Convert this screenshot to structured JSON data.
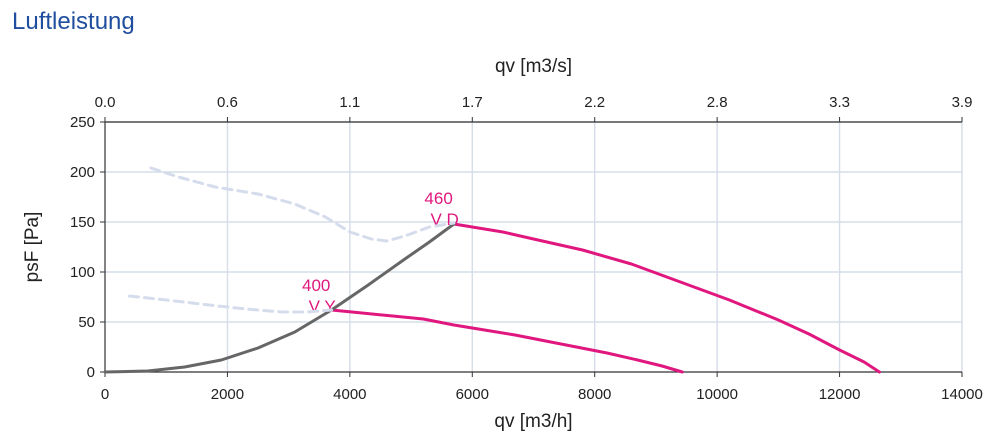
{
  "page": {
    "title": "Luftleistung"
  },
  "chart_data": {
    "type": "line",
    "title": "",
    "xlabel": "qv [m3/h]",
    "ylabel": "psF [Pa]",
    "x2label": "qv [m3/s]",
    "xlim": [
      0,
      14000
    ],
    "ylim": [
      0,
      250
    ],
    "grid": true,
    "x_ticks": [
      "0",
      "2000",
      "4000",
      "6000",
      "8000",
      "10000",
      "12000",
      "14000"
    ],
    "y_ticks": [
      "0",
      "50",
      "100",
      "150",
      "200",
      "250"
    ],
    "x2_ticks": [
      "0.0",
      "0.6",
      "1.1",
      "1.7",
      "2.2",
      "2.8",
      "3.3",
      "3.9"
    ],
    "colors": {
      "curve": "#e0177e",
      "system": "#666666",
      "dashed": "#d5dcec",
      "grid": "#d6dde8",
      "title": "#1f4e9e"
    },
    "series": [
      {
        "style": "curve",
        "label_line1": "460",
        "label_line2": "V D",
        "label_at": [
          5450,
          168
        ],
        "x": [
          5700,
          6500,
          7000,
          7800,
          8600,
          9400,
          10200,
          11000,
          11500,
          12000,
          12400,
          12650
        ],
        "y": [
          148,
          140,
          133,
          122,
          108,
          90,
          72,
          52,
          38,
          22,
          10,
          0
        ]
      },
      {
        "style": "curve",
        "label_line1": "400",
        "label_line2": "V Y",
        "label_at": [
          3450,
          81
        ],
        "x": [
          3700,
          4200,
          4700,
          5200,
          5700,
          6200,
          6700,
          7200,
          7700,
          8200,
          8700,
          9100,
          9430
        ],
        "y": [
          62,
          59,
          56,
          53,
          47,
          42,
          37,
          31,
          25,
          19,
          12,
          6,
          0
        ]
      },
      {
        "style": "system",
        "x": [
          0,
          700,
          1300,
          1900,
          2500,
          3100,
          3700,
          4300,
          4900,
          5300,
          5700
        ],
        "y": [
          0,
          1,
          5,
          12,
          24,
          40,
          62,
          87,
          113,
          130,
          148
        ]
      },
      {
        "style": "dashed",
        "x": [
          750,
          1200,
          1800,
          2500,
          3100,
          3600,
          4000,
          4350,
          4600,
          4900,
          5300,
          5700
        ],
        "y": [
          204,
          195,
          185,
          178,
          168,
          155,
          140,
          133,
          131,
          136,
          145,
          149
        ]
      },
      {
        "style": "dashed",
        "x": [
          400,
          1000,
          1700,
          2300,
          2900,
          3300,
          3700
        ],
        "y": [
          76,
          72,
          67,
          63,
          60,
          60,
          62
        ]
      }
    ]
  }
}
